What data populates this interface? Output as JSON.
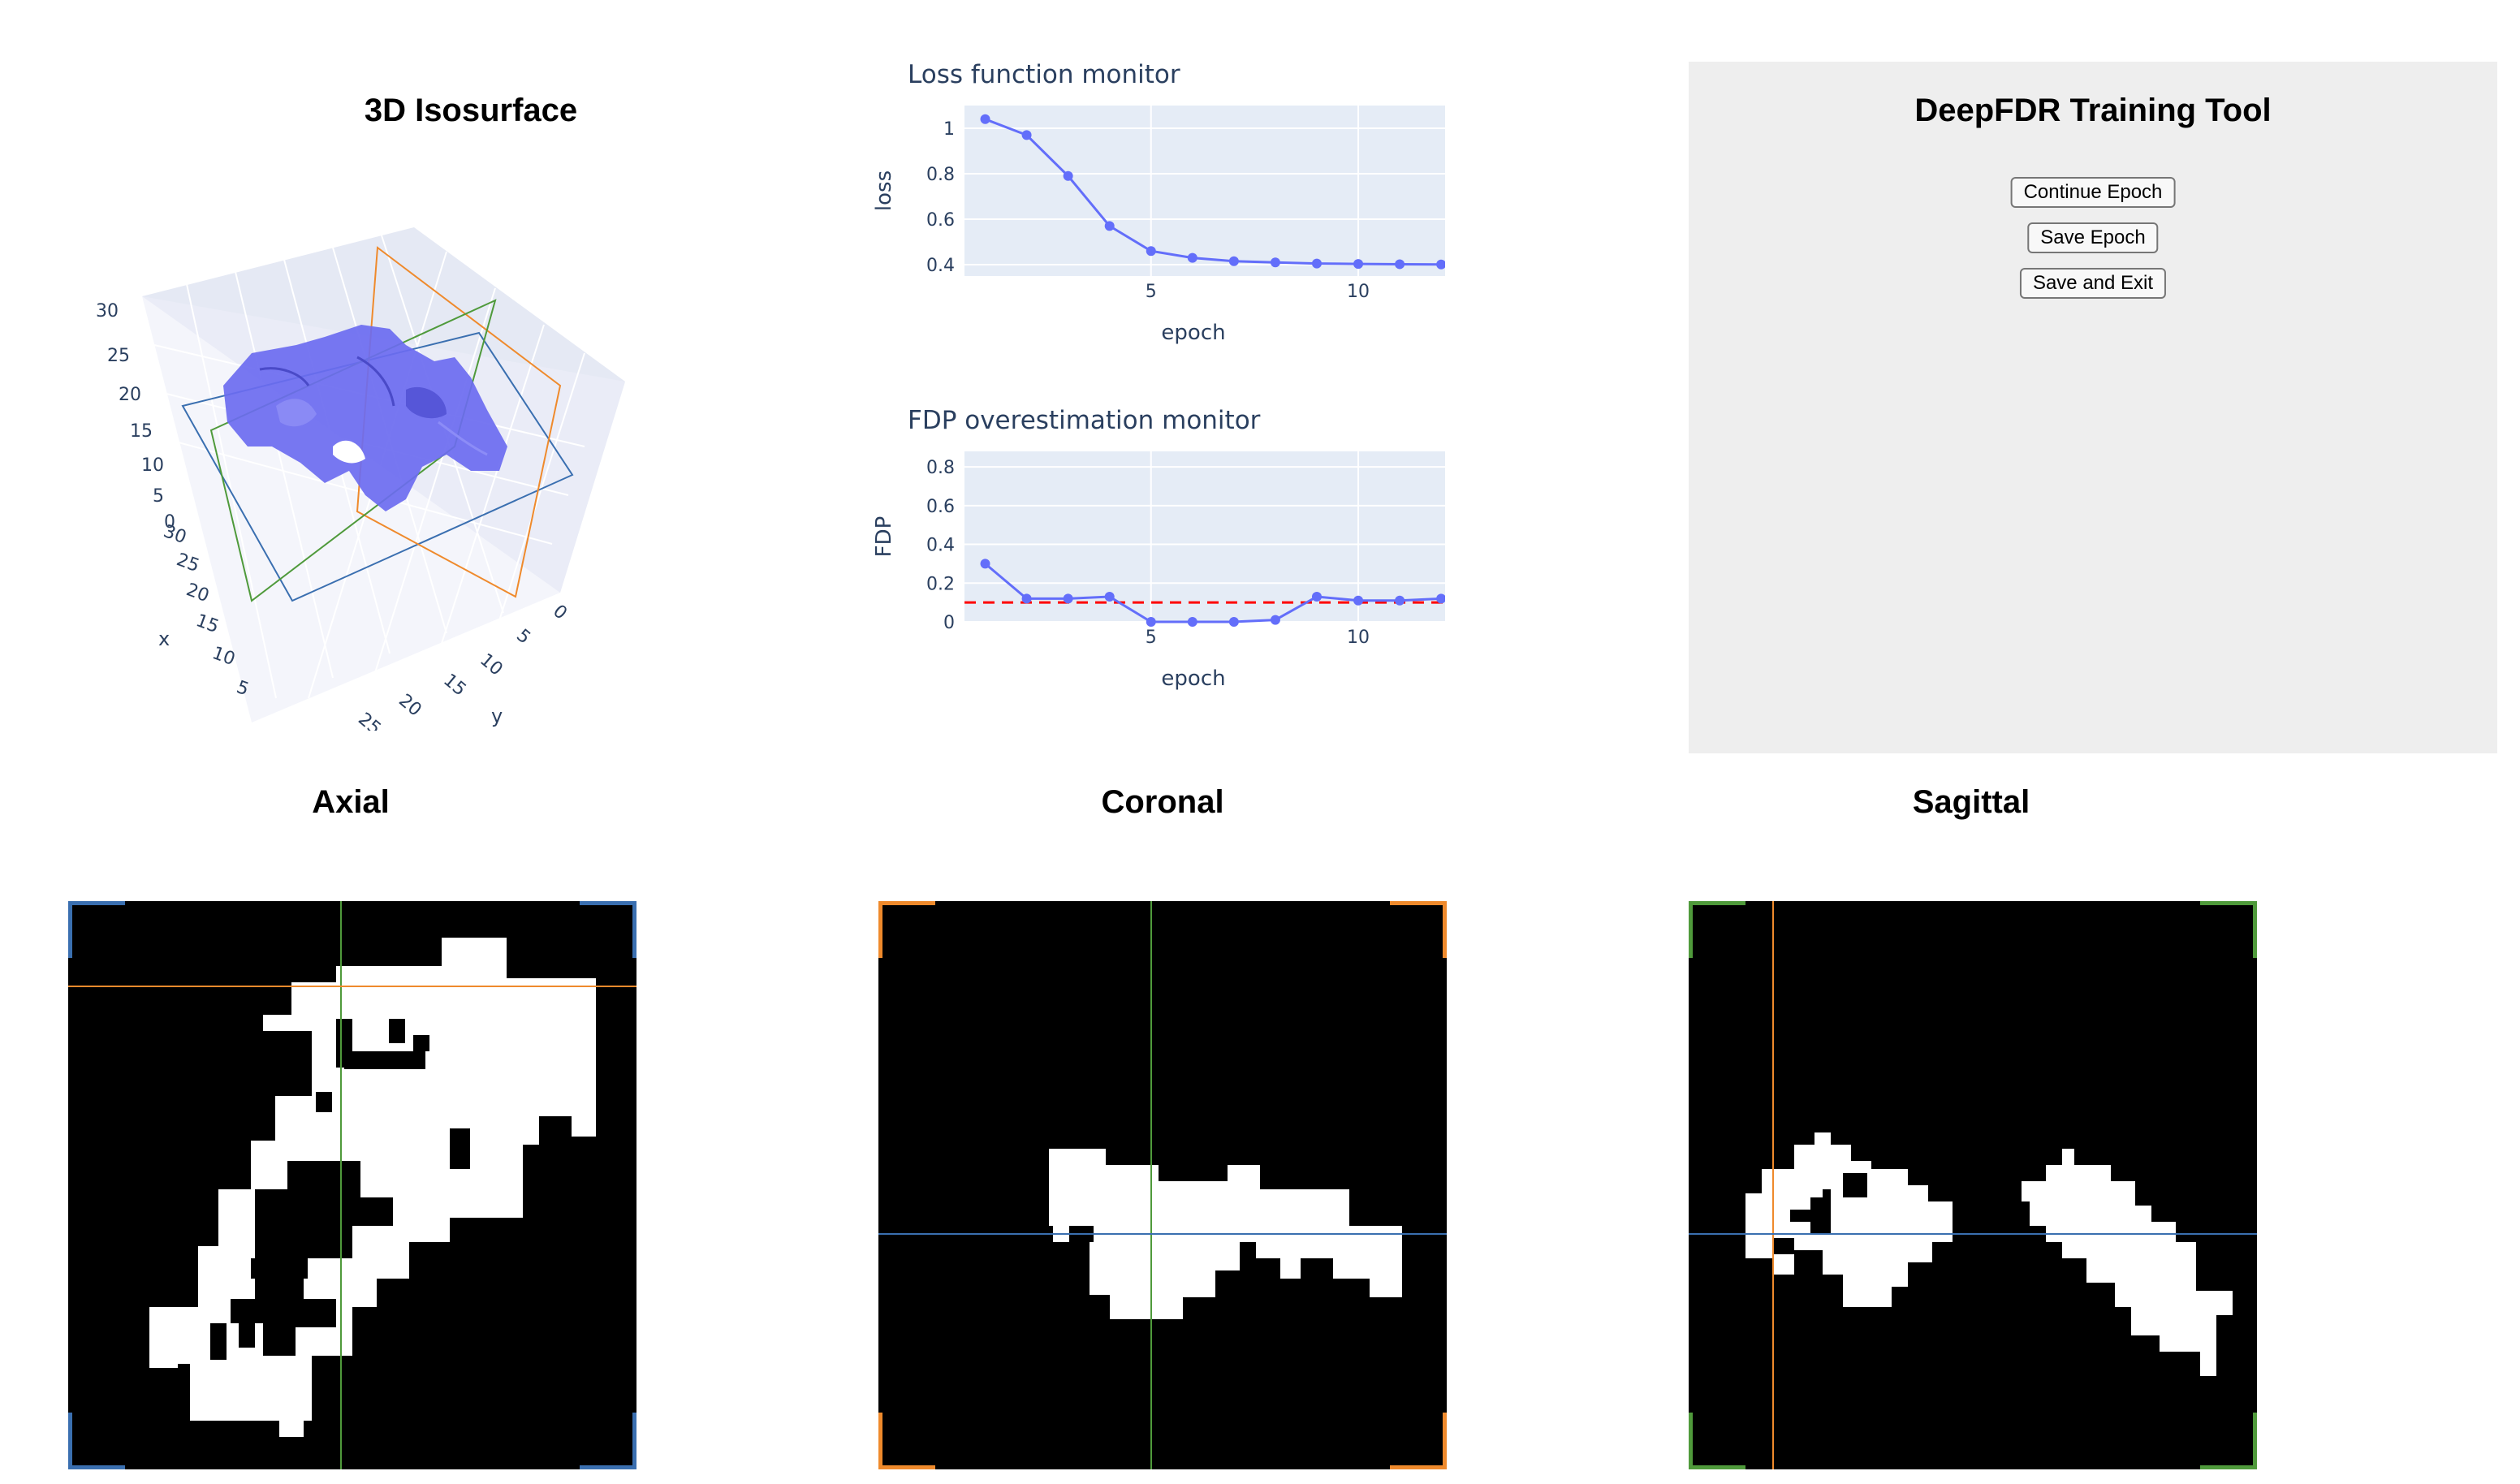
{
  "isosurface": {
    "title": "3D Isosurface",
    "z_ticks": [
      "30",
      "25",
      "20",
      "15",
      "10",
      "5",
      "0"
    ],
    "x_ticks": [
      "30",
      "25",
      "20",
      "15",
      "10",
      "5"
    ],
    "y_ticks": [
      "0",
      "5",
      "10",
      "15",
      "20",
      "25"
    ],
    "x_axis_label": "x",
    "y_axis_label": "y",
    "surface_color": "#6b6bf0",
    "plane_colors": {
      "axial": "#3a6fb0",
      "coronal": "#ef8a2c",
      "sagittal": "#4f9a3b"
    }
  },
  "control": {
    "title": "DeepFDR Training Tool",
    "buttons": {
      "continue": "Continue Epoch",
      "save": "Save Epoch",
      "save_exit": "Save and Exit"
    }
  },
  "slices": {
    "axial_title": "Axial",
    "coronal_title": "Coronal",
    "sagittal_title": "Sagittal"
  },
  "chart_data": [
    {
      "type": "line",
      "title": "Loss function monitor",
      "xlabel": "epoch",
      "ylabel": "loss",
      "x": [
        1,
        2,
        3,
        4,
        5,
        6,
        7,
        8,
        9,
        10,
        11,
        12
      ],
      "y": [
        1.04,
        0.97,
        0.79,
        0.57,
        0.46,
        0.43,
        0.415,
        0.41,
        0.405,
        0.403,
        0.402,
        0.401
      ],
      "xlim": [
        0.5,
        12.8
      ],
      "ylim": [
        0.35,
        1.1
      ],
      "xticks": [
        5,
        10
      ],
      "yticks": [
        0.4,
        0.6,
        0.8,
        1
      ],
      "ytick_labels": [
        "0.4",
        "0.6",
        "0.8",
        "1"
      ],
      "grid": true,
      "line_color": "#636efa"
    },
    {
      "type": "line",
      "title": "FDP overestimation monitor",
      "xlabel": "epoch",
      "ylabel": "FDP",
      "x": [
        1,
        2,
        3,
        4,
        5,
        6,
        7,
        8,
        9,
        10,
        11,
        12
      ],
      "y": [
        0.3,
        0.12,
        0.12,
        0.13,
        0.0,
        0.0,
        0.0,
        0.01,
        0.13,
        0.11,
        0.11,
        0.12
      ],
      "xlim": [
        0.5,
        12.8
      ],
      "ylim": [
        0,
        0.88
      ],
      "xticks": [
        5,
        10
      ],
      "yticks": [
        0,
        0.2,
        0.4,
        0.6,
        0.8
      ],
      "ytick_labels": [
        "0",
        "0.2",
        "0.4",
        "0.6",
        "0.8"
      ],
      "threshold": 0.1,
      "threshold_color": "#ff0000",
      "grid": true,
      "line_color": "#636efa"
    }
  ]
}
